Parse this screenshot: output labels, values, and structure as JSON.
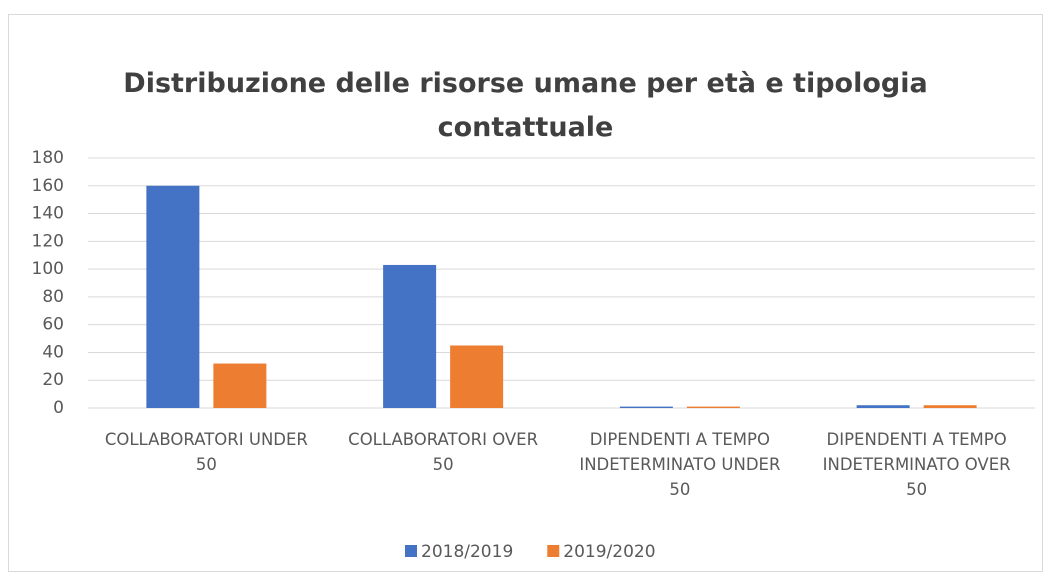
{
  "chart_data": {
    "type": "bar",
    "title": "Distribuzione delle risorse umane per età e tipologia contattuale",
    "categories": [
      "COLLABORATORI UNDER 50",
      "COLLABORATORI OVER 50",
      "DIPENDENTI A TEMPO INDETERMINATO UNDER 50",
      "DIPENDENTI A TEMPO INDETERMINATO OVER 50"
    ],
    "series": [
      {
        "name": "2018/2019",
        "color": "#4472c4",
        "values": [
          160,
          103,
          1,
          2
        ]
      },
      {
        "name": "2019/2020",
        "color": "#ed7d31",
        "values": [
          32,
          45,
          1,
          2
        ]
      }
    ],
    "ylim": [
      0,
      180
    ],
    "yticks": [
      0,
      20,
      40,
      60,
      80,
      100,
      120,
      140,
      160,
      180
    ],
    "grid": true,
    "legend": "bottom"
  }
}
